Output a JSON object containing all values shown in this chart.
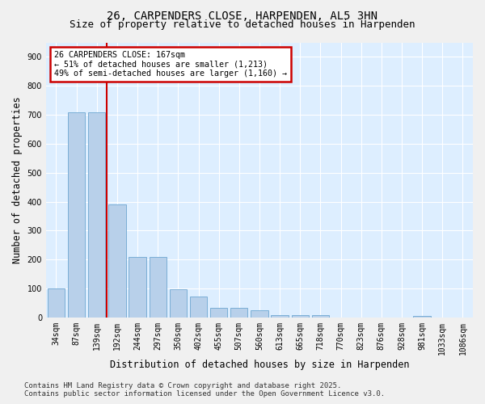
{
  "title_line1": "26, CARPENDERS CLOSE, HARPENDEN, AL5 3HN",
  "title_line2": "Size of property relative to detached houses in Harpenden",
  "xlabel": "Distribution of detached houses by size in Harpenden",
  "ylabel": "Number of detached properties",
  "categories": [
    "34sqm",
    "87sqm",
    "139sqm",
    "192sqm",
    "244sqm",
    "297sqm",
    "350sqm",
    "402sqm",
    "455sqm",
    "507sqm",
    "560sqm",
    "613sqm",
    "665sqm",
    "718sqm",
    "770sqm",
    "823sqm",
    "876sqm",
    "928sqm",
    "981sqm",
    "1033sqm",
    "1086sqm"
  ],
  "values": [
    101,
    710,
    710,
    390,
    210,
    210,
    98,
    72,
    33,
    33,
    25,
    8,
    8,
    8,
    0,
    0,
    0,
    0,
    5,
    0,
    0
  ],
  "bar_color": "#b8d0ea",
  "bar_edge_color": "#7aaed6",
  "vline_x": 2.5,
  "vline_color": "#cc0000",
  "annotation_text": "26 CARPENDERS CLOSE: 167sqm\n← 51% of detached houses are smaller (1,213)\n49% of semi-detached houses are larger (1,160) →",
  "annotation_box_color": "#ffffff",
  "annotation_box_edge": "#cc0000",
  "ylim": [
    0,
    950
  ],
  "yticks": [
    0,
    100,
    200,
    300,
    400,
    500,
    600,
    700,
    800,
    900
  ],
  "footer_line1": "Contains HM Land Registry data © Crown copyright and database right 2025.",
  "footer_line2": "Contains public sector information licensed under the Open Government Licence v3.0.",
  "bg_color": "#f0f0f0",
  "plot_bg_color": "#ddeeff",
  "grid_color": "#ffffff",
  "title_fontsize": 10,
  "subtitle_fontsize": 9,
  "tick_fontsize": 7,
  "label_fontsize": 8.5,
  "footer_fontsize": 6.5
}
